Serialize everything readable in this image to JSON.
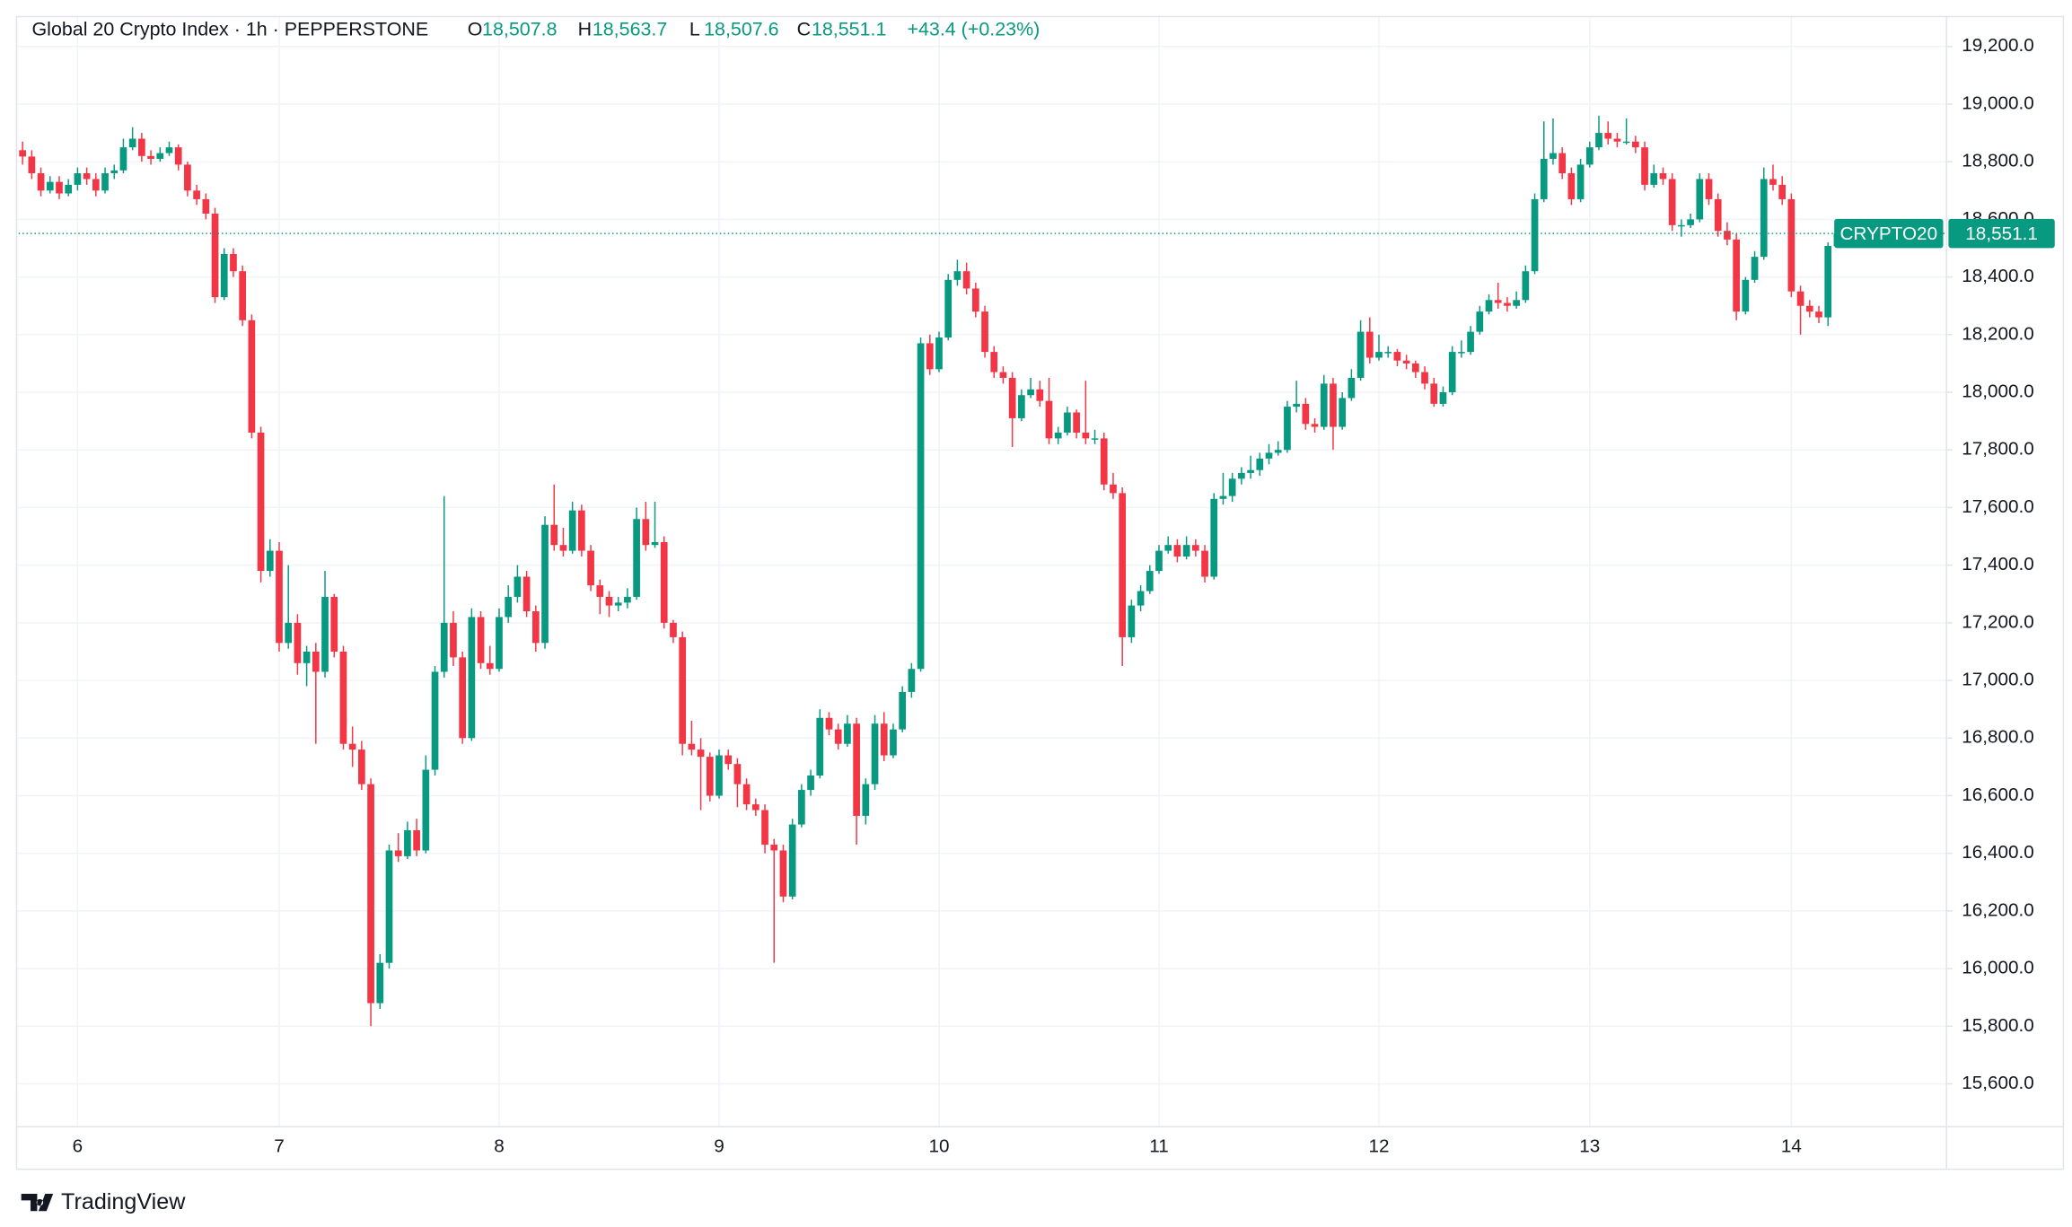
{
  "chart_data": {
    "type": "candlestick",
    "header": {
      "title": "Global 20 Crypto Index · 1h · PEPPERSTONE",
      "info": [
        {
          "label": "O",
          "value": "18,507.8"
        },
        {
          "label": "H",
          "value": "18,563.7"
        },
        {
          "label": "L",
          "value": "18,507.6"
        },
        {
          "label": "C",
          "value": "18,551.1"
        }
      ],
      "change": "+43.4 (+0.23%)"
    },
    "up_color": "#089981",
    "down_color": "#f23645",
    "grid": true,
    "ylim": [
      15450,
      19300
    ],
    "yticks": [
      {
        "value": 15600,
        "label": "15,600.0"
      },
      {
        "value": 15800,
        "label": "15,800.0"
      },
      {
        "value": 16000,
        "label": "16,000.0"
      },
      {
        "value": 16200,
        "label": "16,200.0"
      },
      {
        "value": 16400,
        "label": "16,400.0"
      },
      {
        "value": 16600,
        "label": "16,600.0"
      },
      {
        "value": 16800,
        "label": "16,800.0"
      },
      {
        "value": 17000,
        "label": "17,000.0"
      },
      {
        "value": 17200,
        "label": "17,200.0"
      },
      {
        "value": 17400,
        "label": "17,400.0"
      },
      {
        "value": 17600,
        "label": "17,600.0"
      },
      {
        "value": 17800,
        "label": "17,800.0"
      },
      {
        "value": 18000,
        "label": "18,000.0"
      },
      {
        "value": 18200,
        "label": "18,200.0"
      },
      {
        "value": 18400,
        "label": "18,400.0"
      },
      {
        "value": 18600,
        "label": "18,600.0"
      },
      {
        "value": 18800,
        "label": "18,800.0"
      },
      {
        "value": 19000,
        "label": "19,000.0"
      },
      {
        "value": 19200,
        "label": "19,200.0"
      }
    ],
    "last_price": {
      "name": "CRYPTO20",
      "value": 18551.1,
      "label": "18,551.1"
    },
    "branding": "TradingView",
    "categories": [
      null,
      null,
      null,
      null,
      null,
      null,
      "6",
      null,
      null,
      null,
      null,
      null,
      null,
      null,
      null,
      null,
      null,
      null,
      null,
      null,
      null,
      null,
      null,
      null,
      null,
      null,
      null,
      null,
      "7",
      null,
      null,
      null,
      null,
      null,
      null,
      null,
      null,
      null,
      null,
      null,
      null,
      null,
      null,
      null,
      null,
      null,
      null,
      null,
      null,
      null,
      null,
      null,
      "8",
      null,
      null,
      null,
      null,
      null,
      null,
      null,
      null,
      null,
      null,
      null,
      null,
      null,
      null,
      null,
      null,
      null,
      null,
      null,
      null,
      null,
      null,
      null,
      "9",
      null,
      null,
      null,
      null,
      null,
      null,
      null,
      null,
      null,
      null,
      null,
      null,
      null,
      null,
      null,
      null,
      null,
      null,
      null,
      null,
      null,
      null,
      null,
      "10",
      null,
      null,
      null,
      null,
      null,
      null,
      null,
      null,
      null,
      null,
      null,
      null,
      null,
      null,
      null,
      null,
      null,
      null,
      null,
      null,
      null,
      null,
      null,
      "11",
      null,
      null,
      null,
      null,
      null,
      null,
      null,
      null,
      null,
      null,
      null,
      null,
      null,
      null,
      null,
      null,
      null,
      null,
      null,
      null,
      null,
      null,
      null,
      "12",
      null,
      null,
      null,
      null,
      null,
      null,
      null,
      null,
      null,
      null,
      null,
      null,
      null,
      null,
      null,
      null,
      null,
      null,
      null,
      null,
      null,
      null,
      "13",
      null,
      null,
      null,
      null,
      null,
      null,
      null,
      null,
      null,
      null,
      null,
      null,
      null,
      null,
      null,
      null,
      null,
      null,
      null,
      null,
      null,
      "14",
      null,
      null,
      null,
      null,
      null
    ],
    "ohlc": [
      [
        18840,
        18870,
        18790,
        18818
      ],
      [
        18818,
        18840,
        18740,
        18760
      ],
      [
        18760,
        18780,
        18680,
        18700
      ],
      [
        18700,
        18750,
        18690,
        18730
      ],
      [
        18730,
        18750,
        18670,
        18690
      ],
      [
        18690,
        18740,
        18680,
        18720
      ],
      [
        18720,
        18780,
        18700,
        18760
      ],
      [
        18760,
        18780,
        18720,
        18740
      ],
      [
        18740,
        18760,
        18680,
        18700
      ],
      [
        18700,
        18780,
        18690,
        18760
      ],
      [
        18760,
        18790,
        18740,
        18770
      ],
      [
        18770,
        18880,
        18760,
        18850
      ],
      [
        18850,
        18920,
        18840,
        18880
      ],
      [
        18880,
        18900,
        18800,
        18820
      ],
      [
        18820,
        18840,
        18790,
        18810
      ],
      [
        18810,
        18850,
        18800,
        18830
      ],
      [
        18830,
        18870,
        18820,
        18850
      ],
      [
        18850,
        18860,
        18770,
        18790
      ],
      [
        18790,
        18800,
        18680,
        18700
      ],
      [
        18700,
        18720,
        18650,
        18670
      ],
      [
        18670,
        18690,
        18600,
        18620
      ],
      [
        18620,
        18640,
        18310,
        18330
      ],
      [
        18330,
        18500,
        18320,
        18480
      ],
      [
        18480,
        18500,
        18400,
        18420
      ],
      [
        18420,
        18440,
        18230,
        18250
      ],
      [
        18250,
        18270,
        17840,
        17860
      ],
      [
        17860,
        17880,
        17340,
        17380
      ],
      [
        17380,
        17490,
        17360,
        17450
      ],
      [
        17450,
        17480,
        17100,
        17130
      ],
      [
        17130,
        17400,
        17110,
        17200
      ],
      [
        17200,
        17230,
        17020,
        17060
      ],
      [
        17060,
        17120,
        16980,
        17100
      ],
      [
        17100,
        17130,
        16780,
        17030
      ],
      [
        17030,
        17380,
        17010,
        17290
      ],
      [
        17290,
        17300,
        17080,
        17100
      ],
      [
        17100,
        17120,
        16760,
        16780
      ],
      [
        16780,
        16840,
        16700,
        16760
      ],
      [
        16760,
        16790,
        16620,
        16640
      ],
      [
        16640,
        16660,
        15800,
        15880
      ],
      [
        15880,
        16050,
        15860,
        16020
      ],
      [
        16020,
        16430,
        16000,
        16410
      ],
      [
        16410,
        16470,
        16370,
        16390
      ],
      [
        16390,
        16510,
        16380,
        16480
      ],
      [
        16480,
        16520,
        16390,
        16410
      ],
      [
        16410,
        16740,
        16400,
        16690
      ],
      [
        16690,
        17050,
        16670,
        17030
      ],
      [
        17030,
        17640,
        17010,
        17200
      ],
      [
        17200,
        17240,
        17050,
        17080
      ],
      [
        17080,
        17100,
        16780,
        16800
      ],
      [
        16800,
        17250,
        16790,
        17220
      ],
      [
        17220,
        17240,
        17040,
        17060
      ],
      [
        17060,
        17120,
        17020,
        17040
      ],
      [
        17040,
        17250,
        17030,
        17220
      ],
      [
        17220,
        17330,
        17200,
        17290
      ],
      [
        17290,
        17400,
        17270,
        17360
      ],
      [
        17360,
        17380,
        17220,
        17240
      ],
      [
        17240,
        17260,
        17100,
        17130
      ],
      [
        17130,
        17570,
        17110,
        17540
      ],
      [
        17540,
        17680,
        17450,
        17470
      ],
      [
        17470,
        17530,
        17430,
        17450
      ],
      [
        17450,
        17620,
        17440,
        17590
      ],
      [
        17590,
        17610,
        17430,
        17450
      ],
      [
        17450,
        17470,
        17310,
        17330
      ],
      [
        17330,
        17350,
        17230,
        17290
      ],
      [
        17290,
        17310,
        17220,
        17260
      ],
      [
        17260,
        17290,
        17240,
        17270
      ],
      [
        17270,
        17320,
        17250,
        17290
      ],
      [
        17290,
        17600,
        17280,
        17560
      ],
      [
        17560,
        17620,
        17450,
        17470
      ],
      [
        17470,
        17620,
        17460,
        17480
      ],
      [
        17480,
        17500,
        17180,
        17200
      ],
      [
        17200,
        17210,
        17130,
        17150
      ],
      [
        17150,
        17170,
        16740,
        16780
      ],
      [
        16780,
        16860,
        16740,
        16760
      ],
      [
        16760,
        16800,
        16550,
        16735
      ],
      [
        16735,
        16750,
        16580,
        16600
      ],
      [
        16600,
        16760,
        16590,
        16740
      ],
      [
        16740,
        16760,
        16690,
        16710
      ],
      [
        16710,
        16730,
        16560,
        16640
      ],
      [
        16640,
        16660,
        16550,
        16570
      ],
      [
        16570,
        16590,
        16530,
        16550
      ],
      [
        16550,
        16570,
        16400,
        16430
      ],
      [
        16430,
        16450,
        16020,
        16410
      ],
      [
        16410,
        16430,
        16230,
        16250
      ],
      [
        16250,
        16520,
        16240,
        16500
      ],
      [
        16500,
        16640,
        16490,
        16620
      ],
      [
        16620,
        16690,
        16600,
        16670
      ],
      [
        16670,
        16900,
        16660,
        16870
      ],
      [
        16870,
        16890,
        16810,
        16830
      ],
      [
        16830,
        16850,
        16760,
        16780
      ],
      [
        16780,
        16880,
        16770,
        16850
      ],
      [
        16850,
        16870,
        16430,
        16530
      ],
      [
        16530,
        16660,
        16500,
        16640
      ],
      [
        16640,
        16880,
        16620,
        16850
      ],
      [
        16850,
        16890,
        16720,
        16740
      ],
      [
        16740,
        16850,
        16730,
        16830
      ],
      [
        16830,
        16980,
        16820,
        16960
      ],
      [
        16960,
        17060,
        16940,
        17040
      ],
      [
        17040,
        18190,
        17030,
        18170
      ],
      [
        18170,
        18200,
        18060,
        18080
      ],
      [
        18080,
        18210,
        18070,
        18190
      ],
      [
        18190,
        18410,
        18180,
        18390
      ],
      [
        18390,
        18460,
        18370,
        18420
      ],
      [
        18420,
        18450,
        18340,
        18360
      ],
      [
        18360,
        18380,
        18260,
        18280
      ],
      [
        18280,
        18300,
        18120,
        18140
      ],
      [
        18140,
        18160,
        18050,
        18070
      ],
      [
        18070,
        18090,
        18030,
        18050
      ],
      [
        18050,
        18070,
        17810,
        17910
      ],
      [
        17910,
        18010,
        17900,
        17990
      ],
      [
        17990,
        18050,
        17980,
        18010
      ],
      [
        18010,
        18040,
        17950,
        17970
      ],
      [
        17970,
        18050,
        17820,
        17840
      ],
      [
        17840,
        17880,
        17820,
        17860
      ],
      [
        17860,
        17950,
        17850,
        17930
      ],
      [
        17930,
        17940,
        17840,
        17860
      ],
      [
        17860,
        18040,
        17820,
        17840
      ],
      [
        17840,
        17870,
        17820,
        17840
      ],
      [
        17840,
        17860,
        17660,
        17680
      ],
      [
        17680,
        17720,
        17630,
        17650
      ],
      [
        17650,
        17670,
        17050,
        17150
      ],
      [
        17150,
        17280,
        17130,
        17260
      ],
      [
        17260,
        17330,
        17240,
        17310
      ],
      [
        17310,
        17400,
        17300,
        17380
      ],
      [
        17380,
        17470,
        17370,
        17450
      ],
      [
        17450,
        17500,
        17440,
        17470
      ],
      [
        17470,
        17490,
        17410,
        17430
      ],
      [
        17430,
        17500,
        17420,
        17470
      ],
      [
        17470,
        17490,
        17430,
        17450
      ],
      [
        17450,
        17470,
        17340,
        17360
      ],
      [
        17360,
        17650,
        17350,
        17630
      ],
      [
        17630,
        17720,
        17610,
        17640
      ],
      [
        17640,
        17720,
        17620,
        17700
      ],
      [
        17700,
        17740,
        17680,
        17720
      ],
      [
        17720,
        17780,
        17700,
        17730
      ],
      [
        17730,
        17790,
        17710,
        17770
      ],
      [
        17770,
        17820,
        17750,
        17790
      ],
      [
        17790,
        17830,
        17780,
        17800
      ],
      [
        17800,
        17970,
        17790,
        17950
      ],
      [
        17950,
        18040,
        17930,
        17960
      ],
      [
        17960,
        17980,
        17870,
        17890
      ],
      [
        17890,
        17910,
        17860,
        17880
      ],
      [
        17880,
        18060,
        17870,
        18030
      ],
      [
        18030,
        18050,
        17800,
        17880
      ],
      [
        17880,
        18000,
        17870,
        17980
      ],
      [
        17980,
        18080,
        17970,
        18050
      ],
      [
        18050,
        18250,
        18040,
        18210
      ],
      [
        18210,
        18260,
        18100,
        18120
      ],
      [
        18120,
        18200,
        18110,
        18140
      ],
      [
        18140,
        18160,
        18120,
        18140
      ],
      [
        18140,
        18150,
        18090,
        18110
      ],
      [
        18110,
        18130,
        18080,
        18100
      ],
      [
        18100,
        18110,
        18050,
        18070
      ],
      [
        18070,
        18090,
        18010,
        18030
      ],
      [
        18030,
        18050,
        17950,
        17960
      ],
      [
        17960,
        18020,
        17950,
        18000
      ],
      [
        18000,
        18160,
        17990,
        18140
      ],
      [
        18140,
        18180,
        18120,
        18140
      ],
      [
        18140,
        18230,
        18130,
        18210
      ],
      [
        18210,
        18300,
        18200,
        18280
      ],
      [
        18280,
        18340,
        18270,
        18320
      ],
      [
        18320,
        18380,
        18290,
        18310
      ],
      [
        18310,
        18330,
        18280,
        18300
      ],
      [
        18300,
        18350,
        18290,
        18320
      ],
      [
        18320,
        18440,
        18310,
        18420
      ],
      [
        18420,
        18690,
        18410,
        18670
      ],
      [
        18670,
        18940,
        18660,
        18810
      ],
      [
        18810,
        18950,
        18790,
        18830
      ],
      [
        18830,
        18850,
        18740,
        18760
      ],
      [
        18760,
        18780,
        18650,
        18670
      ],
      [
        18670,
        18810,
        18660,
        18790
      ],
      [
        18790,
        18870,
        18780,
        18850
      ],
      [
        18850,
        18960,
        18840,
        18900
      ],
      [
        18900,
        18940,
        18860,
        18880
      ],
      [
        18880,
        18900,
        18850,
        18870
      ],
      [
        18870,
        18950,
        18860,
        18870
      ],
      [
        18870,
        18890,
        18830,
        18850
      ],
      [
        18850,
        18870,
        18700,
        18720
      ],
      [
        18720,
        18790,
        18710,
        18760
      ],
      [
        18760,
        18780,
        18720,
        18740
      ],
      [
        18740,
        18760,
        18560,
        18580
      ],
      [
        18580,
        18600,
        18540,
        18580
      ],
      [
        18580,
        18620,
        18570,
        18600
      ],
      [
        18600,
        18760,
        18590,
        18740
      ],
      [
        18740,
        18760,
        18650,
        18670
      ],
      [
        18670,
        18690,
        18540,
        18560
      ],
      [
        18560,
        18590,
        18510,
        18530
      ],
      [
        18530,
        18550,
        18250,
        18280
      ],
      [
        18280,
        18400,
        18270,
        18390
      ],
      [
        18390,
        18490,
        18380,
        18470
      ],
      [
        18470,
        18780,
        18460,
        18740
      ],
      [
        18740,
        18790,
        18700,
        18720
      ],
      [
        18720,
        18750,
        18650,
        18670
      ],
      [
        18670,
        18690,
        18330,
        18350
      ],
      [
        18350,
        18370,
        18200,
        18300
      ],
      [
        18300,
        18320,
        18260,
        18280
      ],
      [
        18280,
        18300,
        18240,
        18260
      ],
      [
        18260,
        18520,
        18230,
        18507.8
      ],
      [
        18507.8,
        18563.7,
        18507.6,
        18551.1
      ]
    ]
  }
}
